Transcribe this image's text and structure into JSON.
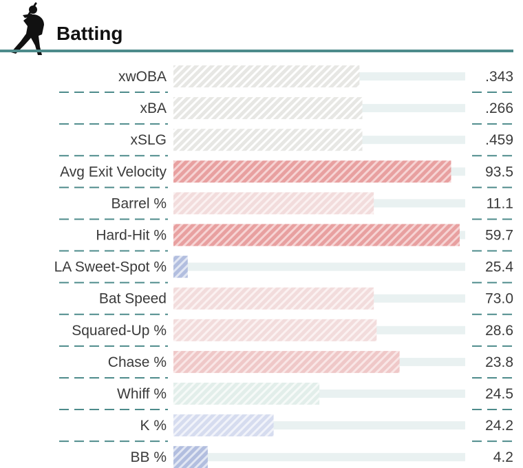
{
  "header": {
    "title": "Batting",
    "icon": "baseball-batter-icon",
    "rule_color": "#4d8b8b"
  },
  "chart_data": {
    "type": "bar",
    "orientation": "horizontal",
    "title": "Batting",
    "xlabel": "",
    "ylabel": "",
    "percentile_range": [
      0,
      100
    ],
    "value_display": "right",
    "grid": false,
    "metrics": [
      {
        "label": "xwOBA",
        "value": ".343",
        "percentile": 65,
        "tone": "neutral"
      },
      {
        "label": "xBA",
        "value": ".266",
        "percentile": 66,
        "tone": "neutral"
      },
      {
        "label": "xSLG",
        "value": ".459",
        "percentile": 66,
        "tone": "neutral"
      },
      {
        "label": "Avg Exit Velocity",
        "value": "93.5",
        "percentile": 97,
        "tone": "hot"
      },
      {
        "label": "Barrel %",
        "value": "11.1",
        "percentile": 70,
        "tone": "warm"
      },
      {
        "label": "Hard-Hit %",
        "value": "59.7",
        "percentile": 100,
        "tone": "hot"
      },
      {
        "label": "LA Sweet-Spot %",
        "value": "25.4",
        "percentile": 5,
        "tone": "cold"
      },
      {
        "label": "Bat Speed",
        "value": "73.0",
        "percentile": 70,
        "tone": "warm"
      },
      {
        "label": "Squared-Up %",
        "value": "28.6",
        "percentile": 71,
        "tone": "warm"
      },
      {
        "label": "Chase %",
        "value": "23.8",
        "percentile": 79,
        "tone": "mid"
      },
      {
        "label": "Whiff %",
        "value": "24.5",
        "percentile": 51,
        "tone": "teal"
      },
      {
        "label": "K %",
        "value": "24.2",
        "percentile": 35,
        "tone": "cool"
      },
      {
        "label": "BB %",
        "value": "4.2",
        "percentile": 12,
        "tone": "cold"
      }
    ],
    "colors": {
      "neutral": {
        "base": "#e7e7e4",
        "stripe": "#ffffff"
      },
      "hot": {
        "base": "#e8a0a0",
        "stripe": "#f6d4d4"
      },
      "warm": {
        "base": "#f2dcdc",
        "stripe": "#fbf1f1"
      },
      "mid": {
        "base": "#efc8c8",
        "stripe": "#f9e6e6"
      },
      "teal": {
        "base": "#e2eeea",
        "stripe": "#f6faf8"
      },
      "cool": {
        "base": "#d6dcef",
        "stripe": "#f1f3fa"
      },
      "cold": {
        "base": "#b2bedf",
        "stripe": "#e2e7f3"
      },
      "track": "#e9f1f1",
      "divider": "#4d8b8b"
    }
  }
}
